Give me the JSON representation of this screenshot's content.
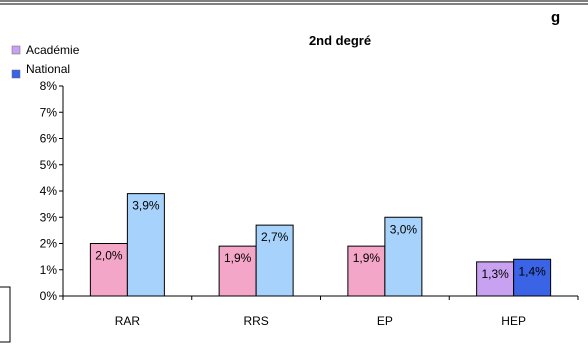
{
  "header_fragment": "g",
  "chart_data": {
    "type": "bar",
    "title": "2nd degré",
    "xlabel": "",
    "ylabel": "",
    "ylim": [
      0,
      8
    ],
    "y_ticks": [
      "0%",
      "1%",
      "2%",
      "3%",
      "4%",
      "5%",
      "6%",
      "7%",
      "8%"
    ],
    "categories": [
      "RAR",
      "RRS",
      "EP",
      "HEP"
    ],
    "series": [
      {
        "name": "Académie",
        "values": [
          2.0,
          1.9,
          1.9,
          1.3
        ],
        "labels": [
          "2,0%",
          "1,9%",
          "1,9%",
          "1,3%"
        ],
        "colors": [
          "#f4a6c8",
          "#f4a6c8",
          "#f4a6c8",
          "#c8a2f0"
        ]
      },
      {
        "name": "National",
        "values": [
          3.9,
          2.7,
          3.0,
          1.4
        ],
        "labels": [
          "3,9%",
          "2,7%",
          "3,0%",
          "1,4%"
        ],
        "colors": [
          "#a6d2fb",
          "#a6d2fb",
          "#a6d2fb",
          "#3b63e6"
        ]
      }
    ],
    "legend_position": "top-left",
    "grid": false
  }
}
